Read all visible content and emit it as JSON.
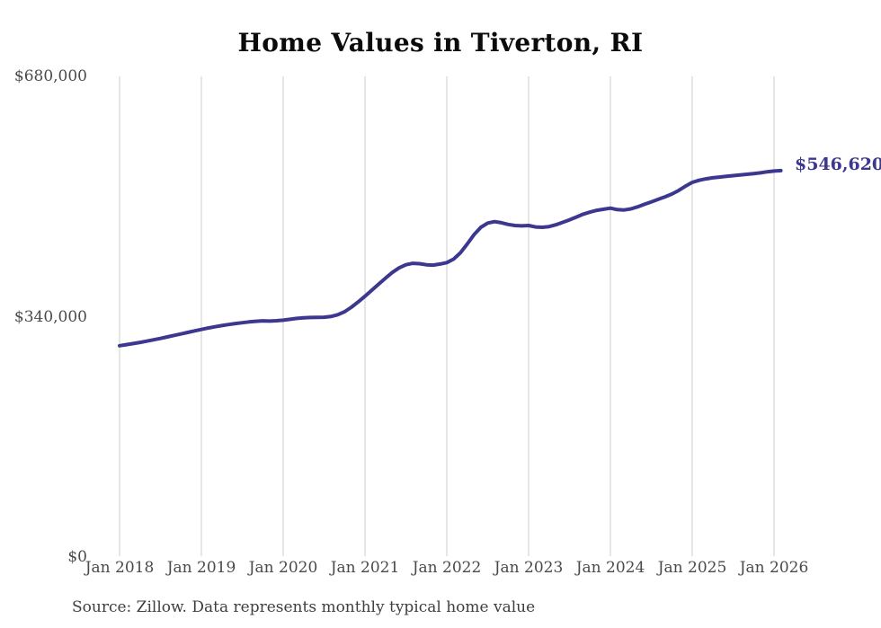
{
  "chart_data": {
    "type": "line",
    "title": "Home Values in Tiverton, RI",
    "source_note": "Source: Zillow. Data represents monthly typical home value",
    "end_label": "$546,620",
    "end_value": 546620,
    "start_month": "2018-01",
    "frequency": "monthly",
    "x_tick_labels": [
      "Jan 2018",
      "Jan 2019",
      "Jan 2020",
      "Jan 2021",
      "Jan 2022",
      "Jan 2023",
      "Jan 2024",
      "Jan 2025",
      "Jan 2026"
    ],
    "y_ticks": [
      {
        "value": 0,
        "label": "$0"
      },
      {
        "value": 340000,
        "label": "$340,000"
      },
      {
        "value": 680000,
        "label": "$680,000"
      }
    ],
    "ylim": [
      0,
      680000
    ],
    "legend": "none",
    "grid": "vertical-years-only",
    "line_color": "#3c378f",
    "grid_color": "#cccccc",
    "values": [
      299000,
      300500,
      302000,
      303600,
      305400,
      307300,
      309300,
      311400,
      313500,
      315600,
      317700,
      319900,
      322000,
      324000,
      325800,
      327400,
      328900,
      330300,
      331500,
      332600,
      333500,
      334100,
      333800,
      334300,
      335000,
      336300,
      337600,
      338400,
      338900,
      339100,
      339300,
      340300,
      342800,
      347000,
      353300,
      360800,
      369000,
      377500,
      386000,
      394500,
      402500,
      409000,
      413500,
      415500,
      415000,
      413500,
      413000,
      414500,
      416500,
      421500,
      430500,
      443000,
      456000,
      466500,
      472500,
      474500,
      473000,
      470500,
      469000,
      468500,
      469000,
      467000,
      466500,
      467500,
      470000,
      473500,
      477000,
      481000,
      485000,
      488000,
      490500,
      492000,
      493500,
      491500,
      491000,
      492500,
      495500,
      499000,
      502500,
      506000,
      509500,
      513500,
      518500,
      524500,
      530000,
      533000,
      535000,
      536500,
      537500,
      538500,
      539500,
      540500,
      541500,
      542500,
      543500,
      545000,
      546000,
      546620
    ]
  }
}
